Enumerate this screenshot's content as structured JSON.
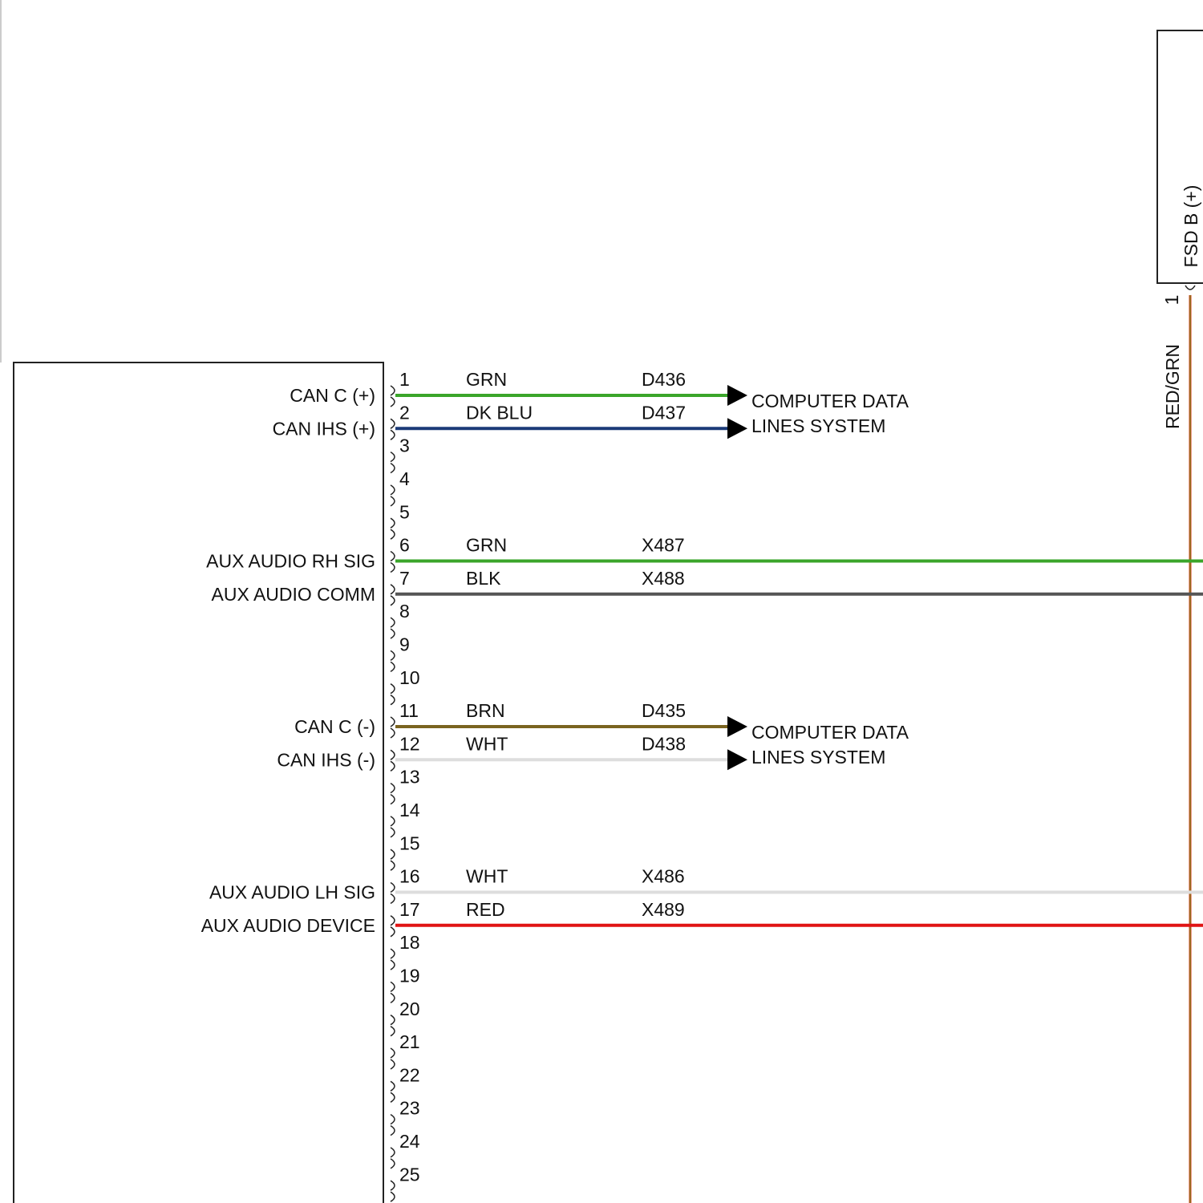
{
  "module": {
    "pins": [
      {
        "number": "1",
        "label": "CAN C (+)",
        "wire": {
          "color_code": "GRN",
          "circuit": "D436",
          "color": "#3aa52a",
          "arrow": true
        }
      },
      {
        "number": "2",
        "label": "CAN IHS (+)",
        "wire": {
          "color_code": "DK BLU",
          "circuit": "D437",
          "color": "#1b3a78",
          "arrow": true
        }
      },
      {
        "number": "3"
      },
      {
        "number": "4"
      },
      {
        "number": "5"
      },
      {
        "number": "6",
        "label": "AUX AUDIO RH SIG",
        "wire": {
          "color_code": "GRN",
          "circuit": "X487",
          "color": "#3aa52a",
          "arrow": false
        }
      },
      {
        "number": "7",
        "label": "AUX AUDIO COMM",
        "wire": {
          "color_code": "BLK",
          "circuit": "X488",
          "color": "#555555",
          "arrow": false
        }
      },
      {
        "number": "8"
      },
      {
        "number": "9"
      },
      {
        "number": "10"
      },
      {
        "number": "11",
        "label": "CAN C (-)",
        "wire": {
          "color_code": "BRN",
          "circuit": "D435",
          "color": "#7a6420",
          "arrow": true
        }
      },
      {
        "number": "12",
        "label": "CAN IHS (-)",
        "wire": {
          "color_code": "WHT",
          "circuit": "D438",
          "color": "#dddddd",
          "arrow": true
        }
      },
      {
        "number": "13"
      },
      {
        "number": "14"
      },
      {
        "number": "15"
      },
      {
        "number": "16",
        "label": "AUX AUDIO LH SIG",
        "wire": {
          "color_code": "WHT",
          "circuit": "X486",
          "color": "#dddddd",
          "arrow": false
        }
      },
      {
        "number": "17",
        "label": "AUX AUDIO DEVICE",
        "wire": {
          "color_code": "RED",
          "circuit": "X489",
          "color": "#e01414",
          "arrow": false
        }
      },
      {
        "number": "18"
      },
      {
        "number": "19"
      },
      {
        "number": "20"
      },
      {
        "number": "21"
      },
      {
        "number": "22"
      },
      {
        "number": "23"
      },
      {
        "number": "24"
      },
      {
        "number": "25"
      }
    ]
  },
  "destinations": [
    {
      "lines": [
        "COMPUTER DATA",
        "LINES SYSTEM"
      ]
    },
    {
      "lines": [
        "COMPUTER DATA",
        "LINES SYSTEM"
      ]
    }
  ],
  "fsd": {
    "label": "FSD B (+)",
    "pin": "1",
    "wire_color_code": "RED/GRN"
  }
}
